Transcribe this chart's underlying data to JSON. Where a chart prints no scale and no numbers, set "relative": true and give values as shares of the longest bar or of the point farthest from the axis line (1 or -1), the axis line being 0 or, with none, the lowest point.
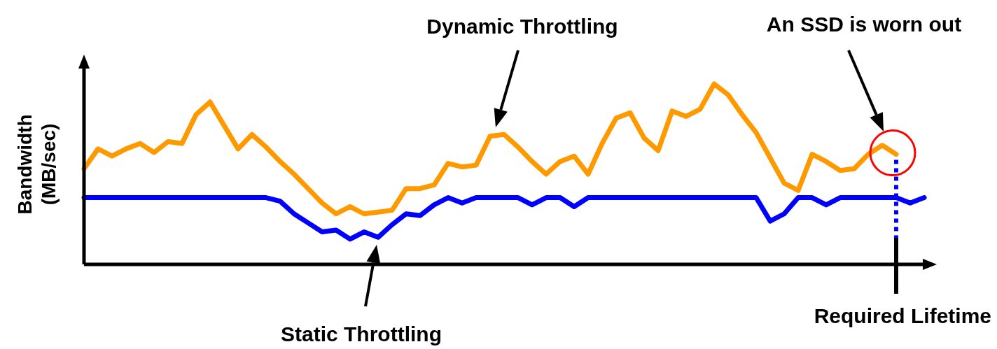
{
  "chart_data": {
    "type": "line",
    "relative": true,
    "ylabel": "Bandwidth\n(MB/sec)",
    "categories": [
      null,
      null,
      null,
      null,
      null,
      null,
      null,
      null,
      null,
      null,
      null,
      null,
      null,
      null,
      null,
      null,
      null,
      null,
      null,
      null,
      null,
      null,
      null,
      null,
      null,
      null,
      null,
      null,
      null,
      null,
      null,
      null,
      null,
      null,
      null,
      null,
      null,
      null,
      null,
      null,
      null,
      null,
      null,
      null,
      null,
      null,
      null,
      null,
      null,
      null,
      null,
      null,
      null,
      null,
      null,
      null,
      null,
      null,
      null,
      null,
      null
    ],
    "series": [
      {
        "color": "#ff9900",
        "values": [
          0.53,
          0.64,
          0.6,
          0.64,
          0.67,
          0.62,
          0.68,
          0.67,
          0.83,
          0.9,
          0.77,
          0.64,
          0.72,
          0.65,
          0.57,
          0.5,
          0.42,
          0.34,
          0.28,
          0.32,
          0.28,
          0.29,
          0.3,
          0.42,
          0.42,
          0.44,
          0.56,
          0.54,
          0.55,
          0.71,
          0.72,
          0.65,
          0.57,
          0.5,
          0.57,
          0.6,
          0.5,
          0.67,
          0.81,
          0.84,
          0.7,
          0.63,
          0.85,
          0.82,
          0.86,
          1,
          0.94,
          0.83,
          0.73,
          0.59,
          0.45,
          0.41,
          0.61,
          0.57,
          0.52,
          0.53,
          0.61,
          0.66,
          0.61,
          null,
          null
        ]
      },
      {
        "color": "#0000ff",
        "values": [
          0.37,
          0.37,
          0.37,
          0.37,
          0.37,
          0.37,
          0.37,
          0.37,
          0.37,
          0.37,
          0.37,
          0.37,
          0.37,
          0.37,
          0.35,
          0.28,
          0.23,
          0.18,
          0.19,
          0.14,
          0.18,
          0.15,
          0.22,
          0.28,
          0.27,
          0.33,
          0.37,
          0.34,
          0.37,
          0.37,
          0.37,
          0.37,
          0.33,
          0.37,
          0.37,
          0.32,
          0.37,
          0.37,
          0.37,
          0.37,
          0.37,
          0.37,
          0.37,
          0.37,
          0.37,
          0.37,
          0.37,
          0.37,
          0.37,
          0.24,
          0.28,
          0.37,
          0.37,
          0.33,
          0.37,
          0.37,
          0.37,
          0.37,
          0.37,
          0.34,
          0.37
        ]
      }
    ],
    "annotations": [
      "Dynamic Throttling",
      "Static Throttling",
      "An SSD is worn out",
      "Required Lifetime"
    ]
  }
}
